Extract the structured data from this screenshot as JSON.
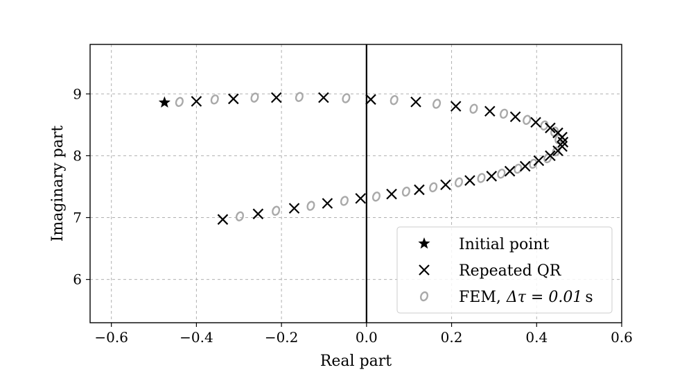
{
  "chart_data": {
    "type": "scatter",
    "xlabel": "Real part",
    "ylabel": "Imaginary part",
    "xlim": [
      -0.65,
      0.6
    ],
    "ylim": [
      5.3,
      9.8
    ],
    "xticks": [
      -0.6,
      -0.4,
      -0.2,
      0.0,
      0.2,
      0.4,
      0.6
    ],
    "xtick_labels": [
      "−0.6",
      "−0.4",
      "−0.2",
      "0.0",
      "0.2",
      "0.4",
      "0.6"
    ],
    "yticks": [
      6,
      7,
      8,
      9
    ],
    "ytick_labels": [
      "6",
      "7",
      "8",
      "9"
    ],
    "grid": true,
    "vline_x": 0,
    "legend_position": "bottom-right",
    "series": [
      {
        "name": "Initial point",
        "marker": "star",
        "color": "#000000",
        "x": [
          -0.475
        ],
        "y": [
          8.86
        ]
      },
      {
        "name": "Repeated QR",
        "marker": "x",
        "color": "#000000",
        "x": [
          -0.4,
          -0.313,
          -0.212,
          -0.101,
          0.01,
          0.116,
          0.21,
          0.29,
          0.35,
          0.398,
          0.432,
          0.45,
          0.46,
          0.462,
          0.46,
          0.45,
          0.432,
          0.405,
          0.373,
          0.337,
          0.294,
          0.243,
          0.186,
          0.124,
          0.059,
          -0.014,
          -0.092,
          -0.17,
          -0.255,
          -0.338
        ],
        "y": [
          8.88,
          8.92,
          8.94,
          8.94,
          8.91,
          8.87,
          8.8,
          8.72,
          8.63,
          8.54,
          8.45,
          8.37,
          8.3,
          8.22,
          8.15,
          8.08,
          8.0,
          7.92,
          7.83,
          7.75,
          7.67,
          7.6,
          7.53,
          7.45,
          7.38,
          7.31,
          7.23,
          7.15,
          7.06,
          6.97
        ]
      },
      {
        "name": "FEM, Δτ = 0.01 s",
        "marker": "o",
        "color": "#a9a9a9",
        "x": [
          -0.44,
          -0.357,
          -0.263,
          -0.158,
          -0.048,
          0.065,
          0.165,
          0.252,
          0.323,
          0.377,
          0.418,
          0.442,
          0.452,
          0.446,
          0.426,
          0.392,
          0.356,
          0.317,
          0.27,
          0.217,
          0.157,
          0.093,
          0.023,
          -0.052,
          -0.131,
          -0.213,
          -0.298
        ],
        "y": [
          8.87,
          8.91,
          8.94,
          8.95,
          8.93,
          8.9,
          8.84,
          8.76,
          8.68,
          8.58,
          8.49,
          8.39,
          8.27,
          8.07,
          7.96,
          7.87,
          7.79,
          7.71,
          7.64,
          7.57,
          7.49,
          7.42,
          7.34,
          7.27,
          7.19,
          7.11,
          7.02
        ]
      }
    ],
    "legend": {
      "labels": [
        "Initial point",
        "Repeated QR"
      ],
      "fem_label": {
        "prefix": "FEM,",
        "math": "Δτ = 0.01",
        "unit": "s"
      }
    }
  }
}
